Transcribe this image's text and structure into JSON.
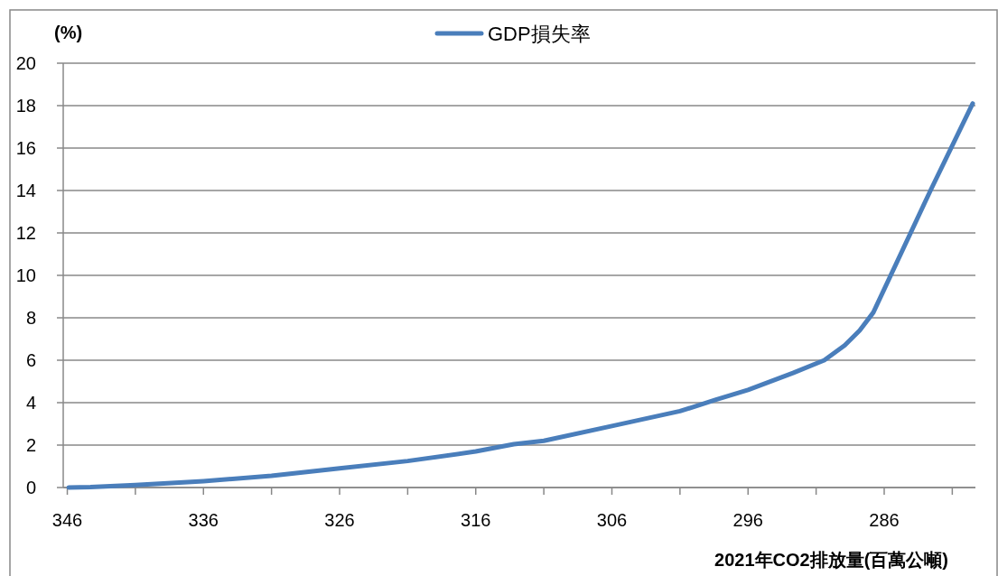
{
  "chart_data": {
    "type": "line",
    "ylabel": "(%)",
    "xlabel": "2021年CO2排放量(百萬公噸)",
    "series": [
      {
        "name": "GDP損失率",
        "color": "#4a7ebb",
        "x": [
          345.9,
          344.3,
          341,
          336,
          331,
          326,
          321,
          316,
          313.2,
          311,
          306,
          301,
          298.4,
          296,
          292.7,
          290.4,
          288.9,
          287.8,
          286.8,
          282.6,
          279.5
        ],
        "values": [
          0,
          0.02,
          0.12,
          0.3,
          0.55,
          0.9,
          1.25,
          1.7,
          2.04,
          2.2,
          2.9,
          3.6,
          4.13,
          4.6,
          5.4,
          6.0,
          6.7,
          7.4,
          8.25,
          14,
          18.1
        ]
      }
    ],
    "xlim": [
      346.3,
      279.3
    ],
    "xticks": [
      346,
      {
        "value": 341,
        "label": null
      },
      336,
      {
        "value": 331,
        "label": null
      },
      326,
      {
        "value": 321,
        "label": null
      },
      316,
      {
        "value": 311,
        "label": null
      },
      306,
      {
        "value": 301,
        "label": null
      },
      296,
      {
        "value": 291,
        "label": null
      },
      286,
      {
        "value": 281,
        "label": null
      }
    ],
    "ylim": [
      0,
      20
    ],
    "yticks": [
      0,
      2,
      4,
      6,
      8,
      10,
      12,
      14,
      16,
      18,
      20
    ],
    "grid": "y",
    "legend": "top",
    "marker": "none",
    "line_style": "solid"
  }
}
